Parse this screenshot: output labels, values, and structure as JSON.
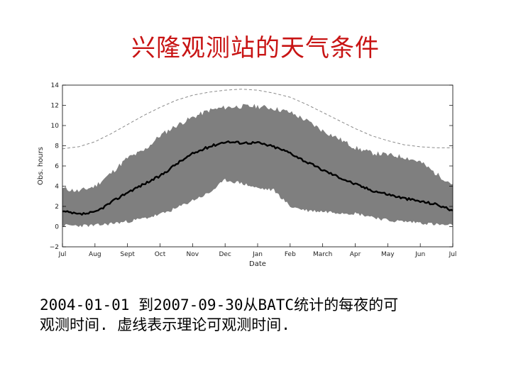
{
  "slide": {
    "title": "兴隆观测站的天气条件",
    "caption_line1": "2004-01-01 到2007-09-30从BATC统计的每夜的可",
    "caption_line2": "观测时间. 虚线表示理论可观测时间."
  },
  "colors": {
    "title": "#c81414",
    "band": "#7f7f7f",
    "median": "#000000",
    "theoretical": "#8c8c8c"
  },
  "chart_data": {
    "type": "area",
    "xlabel": "Date",
    "ylabel": "Obs. hours",
    "ylim": [
      -2,
      14
    ],
    "yticks": [
      -2,
      0,
      2,
      4,
      6,
      8,
      10,
      12,
      14
    ],
    "grid": false,
    "x_ticks": [
      {
        "label": "Jul",
        "x": 0
      },
      {
        "label": "Aug",
        "x": 1
      },
      {
        "label": "Sept",
        "x": 2
      },
      {
        "label": "Oct",
        "x": 3
      },
      {
        "label": "Nov",
        "x": 4
      },
      {
        "label": "Dec",
        "x": 5
      },
      {
        "label": "Jan",
        "x": 6
      },
      {
        "label": "Feb",
        "x": 7
      },
      {
        "label": "March",
        "x": 8
      },
      {
        "label": "Apr",
        "x": 9
      },
      {
        "label": "May",
        "x": 10
      },
      {
        "label": "Jun",
        "x": 11
      },
      {
        "label": "Jul",
        "x": 12
      }
    ],
    "xlim": [
      0,
      12
    ],
    "x": [
      0,
      0.5,
      1,
      1.5,
      2,
      2.5,
      3,
      3.5,
      4,
      4.5,
      5,
      5.5,
      6,
      6.5,
      7,
      7.5,
      8,
      8.5,
      9,
      9.5,
      10,
      10.5,
      11,
      11.5,
      12
    ],
    "series": [
      {
        "role": "theoretical-dashed",
        "values": [
          7.7,
          7.9,
          8.4,
          9.2,
          10.1,
          11.0,
          11.8,
          12.5,
          13.0,
          13.3,
          13.5,
          13.6,
          13.5,
          13.2,
          12.8,
          12.1,
          11.3,
          10.5,
          9.7,
          9.0,
          8.5,
          8.1,
          7.9,
          7.8,
          7.8
        ]
      },
      {
        "role": "band-upper",
        "values": [
          3.8,
          3.5,
          4.0,
          5.3,
          6.8,
          7.5,
          9.0,
          10.0,
          10.8,
          11.5,
          11.8,
          11.9,
          11.9,
          11.7,
          11.3,
          10.5,
          9.5,
          8.7,
          7.8,
          7.3,
          7.1,
          6.9,
          6.4,
          5.2,
          4.2
        ]
      },
      {
        "role": "median",
        "values": [
          1.5,
          1.2,
          1.4,
          2.4,
          3.4,
          4.2,
          5.0,
          6.2,
          7.2,
          7.9,
          8.4,
          8.3,
          8.3,
          7.9,
          7.3,
          6.4,
          5.6,
          4.9,
          4.2,
          3.6,
          3.2,
          2.8,
          2.5,
          2.2,
          1.6
        ]
      },
      {
        "role": "band-lower",
        "values": [
          0.1,
          0.1,
          0.1,
          0.3,
          0.5,
          0.8,
          1.2,
          1.8,
          2.6,
          3.3,
          4.6,
          4.3,
          3.8,
          3.6,
          2.0,
          1.6,
          1.5,
          1.4,
          1.3,
          1.0,
          0.6,
          0.5,
          0.4,
          0.2,
          0.1
        ]
      }
    ]
  }
}
